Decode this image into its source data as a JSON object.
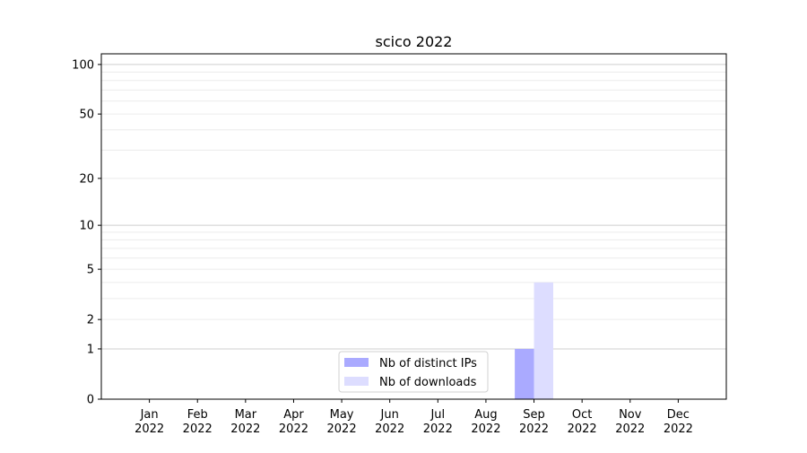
{
  "chart_data": {
    "type": "bar",
    "title": "scico 2022",
    "xlabel": "",
    "ylabel": "",
    "y_scale": "log(1+y)",
    "ylim": [
      0,
      116
    ],
    "yticks": [
      0,
      1,
      2,
      5,
      10,
      20,
      50,
      100
    ],
    "grid": "y major and minor",
    "legend_placement": "lower center",
    "categories": [
      "Jan\n2022",
      "Feb\n2022",
      "Mar\n2022",
      "Apr\n2022",
      "May\n2022",
      "Jun\n2022",
      "Jul\n2022",
      "Aug\n2022",
      "Sep\n2022",
      "Oct\n2022",
      "Nov\n2022",
      "Dec\n2022"
    ],
    "series": [
      {
        "name": "Nb of distinct IPs",
        "color": "#aaaaff",
        "values": [
          0,
          0,
          0,
          0,
          0,
          0,
          0,
          0,
          1,
          0,
          0,
          0
        ]
      },
      {
        "name": "Nb of downloads",
        "color": "#ddddff",
        "values": [
          0,
          0,
          0,
          0,
          0,
          0,
          0,
          0,
          4,
          0,
          0,
          0
        ]
      }
    ]
  }
}
